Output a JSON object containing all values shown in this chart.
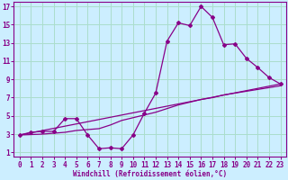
{
  "xlabel": "Windchill (Refroidissement éolien,°C)",
  "bg_color": "#cceeff",
  "grid_color": "#aaddcc",
  "line_color": "#880088",
  "xlim": [
    -0.5,
    23.5
  ],
  "ylim": [
    0.5,
    17.5
  ],
  "xticks": [
    0,
    1,
    2,
    3,
    4,
    5,
    6,
    7,
    8,
    9,
    10,
    11,
    12,
    13,
    14,
    15,
    16,
    17,
    18,
    19,
    20,
    21,
    22,
    23
  ],
  "yticks": [
    1,
    3,
    5,
    7,
    9,
    11,
    13,
    15,
    17
  ],
  "line1_x": [
    0,
    1,
    2,
    3,
    4,
    5,
    6,
    7,
    8,
    9,
    10,
    11,
    12,
    13,
    14,
    15,
    16,
    17,
    18,
    19,
    20,
    21,
    22,
    23
  ],
  "line1_y": [
    2.9,
    3.2,
    3.3,
    3.3,
    4.7,
    4.7,
    2.9,
    1.4,
    1.5,
    1.4,
    2.9,
    5.3,
    7.5,
    13.2,
    15.2,
    14.9,
    17.0,
    15.8,
    12.8,
    12.9,
    11.3,
    10.3,
    9.2,
    8.5
  ],
  "line2_x": [
    0,
    23
  ],
  "line2_y": [
    2.9,
    8.5
  ],
  "line3_x": [
    0,
    1,
    2,
    3,
    4,
    5,
    6,
    7,
    8,
    9,
    10,
    11,
    12,
    13,
    14,
    15,
    16,
    17,
    18,
    19,
    20,
    21,
    22,
    23
  ],
  "line3_y": [
    2.9,
    2.95,
    3.0,
    3.1,
    3.2,
    3.4,
    3.5,
    3.6,
    4.0,
    4.5,
    4.8,
    5.1,
    5.4,
    5.8,
    6.2,
    6.5,
    6.8,
    7.0,
    7.3,
    7.5,
    7.7,
    7.9,
    8.1,
    8.3
  ],
  "tick_fontsize": 5.5,
  "xlabel_fontsize": 5.5
}
